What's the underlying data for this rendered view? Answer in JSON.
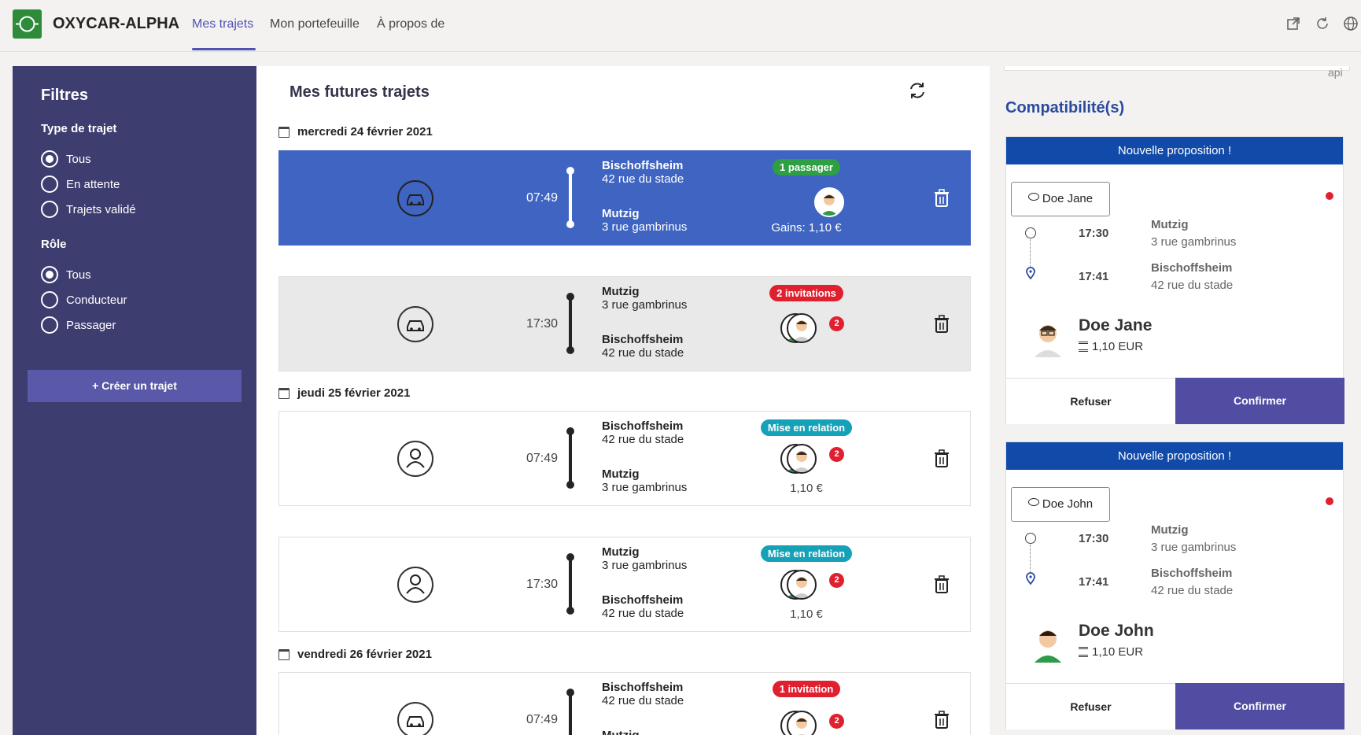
{
  "header": {
    "app_title": "OXYCAR-ALPHA",
    "tabs": [
      {
        "label": "Mes trajets",
        "active": true
      },
      {
        "label": "Mon portefeuille",
        "active": false
      },
      {
        "label": "À propos de",
        "active": false
      }
    ],
    "icons": [
      "popout-icon",
      "reload-icon",
      "globe-icon"
    ]
  },
  "sidebar": {
    "title": "Filtres",
    "type_section": "Type de trajet",
    "type_options": [
      "Tous",
      "En attente",
      "Trajets validé"
    ],
    "type_selected": "Tous",
    "role_section": "Rôle",
    "role_options": [
      "Tous",
      "Conducteur",
      "Passager"
    ],
    "role_selected": "Tous",
    "create_button": "+ Créer un trajet"
  },
  "main": {
    "title": "Mes futures trajets",
    "dates": [
      "mercredi 24 février 2021",
      "jeudi 25 février 2021",
      "vendredi 26 février 2021"
    ],
    "trips": [
      {
        "time": "07:49",
        "from_city": "Bischoffsheim",
        "from_street": "42 rue du stade",
        "to_city": "Mutzig",
        "to_street": "3 rue gambrinus",
        "badge": "1 passager",
        "badge_color": "#2ea043",
        "footer": "Gains: 1,10 €",
        "role_icon": "car-icon"
      },
      {
        "time": "17:30",
        "from_city": "Mutzig",
        "from_street": "3 rue gambrinus",
        "to_city": "Bischoffsheim",
        "to_street": "42 rue du stade",
        "badge": "2 invitations",
        "badge_color": "#e0202f",
        "count": "2",
        "role_icon": "car-icon"
      },
      {
        "time": "07:49",
        "from_city": "Bischoffsheim",
        "from_street": "42 rue du stade",
        "to_city": "Mutzig",
        "to_street": "3 rue gambrinus",
        "badge": "Mise en relation",
        "badge_color": "#15a2b8",
        "count": "2",
        "footer": "1,10 €",
        "role_icon": "person-icon"
      },
      {
        "time": "17:30",
        "from_city": "Mutzig",
        "from_street": "3 rue gambrinus",
        "to_city": "Bischoffsheim",
        "to_street": "42 rue du stade",
        "badge": "Mise en relation",
        "badge_color": "#15a2b8",
        "count": "2",
        "footer": "1,10 €",
        "role_icon": "person-icon"
      },
      {
        "time": "07:49",
        "from_city": "Bischoffsheim",
        "from_street": "42 rue du stade",
        "to_city": "Mutzig",
        "badge": "1 invitation",
        "badge_color": "#e0202f",
        "count": "2",
        "role_icon": "car-icon"
      }
    ]
  },
  "right": {
    "api_text": "api",
    "title": "Compatibilité(s)",
    "proposals": [
      {
        "header": "Nouvelle proposition !",
        "chat_label": "Doe Jane",
        "time1": "17:30",
        "city1": "Mutzig",
        "street1": "3 rue gambrinus",
        "time2": "17:41",
        "city2": "Bischoffsheim",
        "street2": "42 rue du stade",
        "name": "Doe Jane",
        "price": "1,10 EUR",
        "refuse": "Refuser",
        "confirm": "Confirmer"
      },
      {
        "header": "Nouvelle proposition !",
        "chat_label": "Doe John",
        "time1": "17:30",
        "city1": "Mutzig",
        "street1": "3 rue gambrinus",
        "time2": "17:41",
        "city2": "Bischoffsheim",
        "street2": "42 rue du stade",
        "name": "Doe John",
        "price": "1,10 EUR",
        "refuse": "Refuser",
        "confirm": "Confirmer"
      }
    ]
  },
  "colors": {
    "accent": "#4f52b2",
    "sidebar": "#3e3d70",
    "selected_card": "#3f64c1",
    "proposal_header": "#114aa8",
    "confirm": "#504da2"
  }
}
